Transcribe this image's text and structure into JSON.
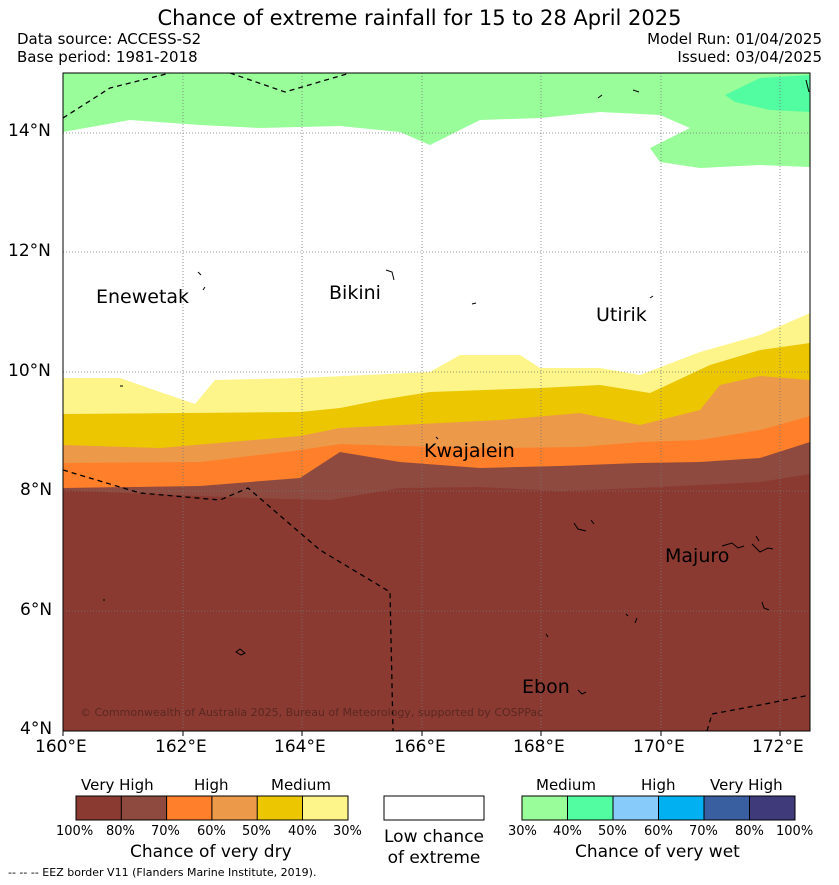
{
  "header": {
    "title": "Chance of extreme rainfall for 15 to 28 April 2025",
    "data_source": "Data source: ACCESS-S2",
    "base_period": "Base period: 1981-2018",
    "model_run": "Model Run: 01/04/2025",
    "issued": "Issued: 03/04/2025"
  },
  "map": {
    "lat_labels": [
      "14°N",
      "12°N",
      "10°N",
      "8°N",
      "6°N",
      "4°N"
    ],
    "lon_labels": [
      "160°E",
      "162°E",
      "164°E",
      "166°E",
      "168°E",
      "170°E",
      "172°E"
    ],
    "places": [
      "Enewetak",
      "Bikini",
      "Utirik",
      "Kwajalein",
      "Majuro",
      "Ebon"
    ],
    "copyright": "© Commonwealth of Australia 2025, Bureau of Meteorology, supported by COSPPac"
  },
  "legend": {
    "dry": {
      "levels": [
        "Very High",
        "High",
        "Medium"
      ],
      "ticks": [
        "100%",
        "80%",
        "70%",
        "60%",
        "50%",
        "40%",
        "30%"
      ],
      "colors": [
        "#8b3a32",
        "#8e4a3e",
        "#ff7f2a",
        "#ec9a4a",
        "#ecc700",
        "#fdf58a"
      ],
      "title": "Chance of very dry"
    },
    "low": {
      "line1": "Low chance",
      "line2": "of extreme",
      "color": "#ffffff"
    },
    "wet": {
      "levels": [
        "Medium",
        "High",
        "Very High"
      ],
      "ticks": [
        "30%",
        "40%",
        "50%",
        "60%",
        "70%",
        "80%",
        "100%"
      ],
      "colors": [
        "#99fd99",
        "#52fda2",
        "#86cbfa",
        "#00b0f0",
        "#395fa1",
        "#3f3a7a"
      ],
      "title": "Chance of very wet"
    },
    "eez_note": "--  --  -- EEZ border V11 (Flanders Marine Institute, 2019)."
  }
}
